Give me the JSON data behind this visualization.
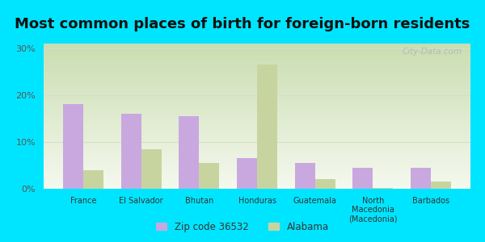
{
  "title": "Most common places of birth for foreign-born residents",
  "categories": [
    "France",
    "El Salvador",
    "Bhutan",
    "Honduras",
    "Guatemala",
    "North\nMacedonia\n(Macedonia)",
    "Barbados"
  ],
  "zip_values": [
    18.0,
    16.0,
    15.5,
    6.5,
    5.5,
    4.5,
    4.5
  ],
  "alabama_values": [
    4.0,
    8.5,
    5.5,
    26.5,
    2.0,
    0.2,
    1.5
  ],
  "zip_color": "#c9a8e0",
  "alabama_color": "#c8d4a0",
  "background_outer": "#00e5ff",
  "gradient_top_left": "#c8ddb0",
  "gradient_right": "#f5f8ee",
  "grid_color": "#d8ddc8",
  "yticks": [
    0,
    10,
    20,
    30
  ],
  "ylim": [
    0,
    31
  ],
  "legend_zip_label": "Zip code 36532",
  "legend_alabama_label": "Alabama",
  "watermark": "City-Data.com",
  "title_fontsize": 13,
  "bar_width": 0.35
}
